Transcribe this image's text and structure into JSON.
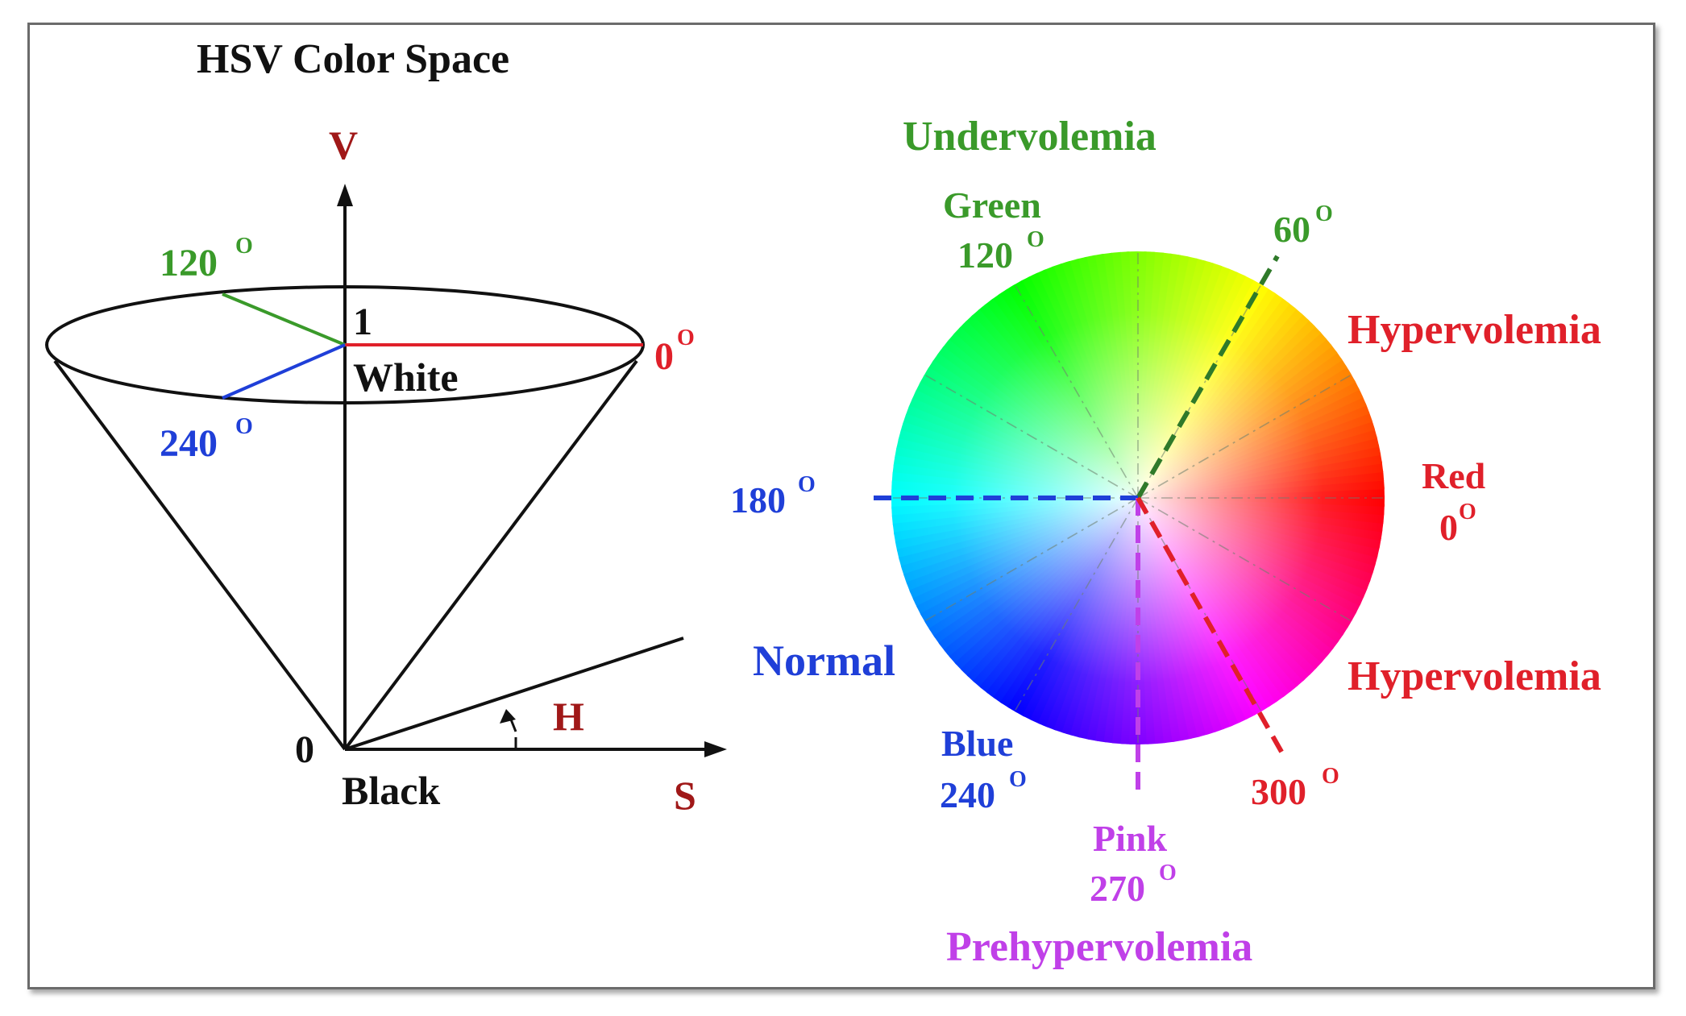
{
  "colors": {
    "red": "#e0202a",
    "darkred": "#a01818",
    "green": "#3a9a2a",
    "blue": "#1f3fd8",
    "purple": "#c040e8",
    "black": "#111111"
  },
  "cone": {
    "title": "HSV Color Space",
    "v_axis": "V",
    "s_axis": "S",
    "h_label": "H",
    "top_value": "1",
    "top_name": "White",
    "bottom_value": "0",
    "bottom_name": "Black",
    "angle_0": "0",
    "angle_120": "120",
    "angle_240": "240",
    "degree": "O"
  },
  "wheel": {
    "undervolemia": "Undervolemia",
    "green_name": "Green",
    "green_angle": "120",
    "angle_60": "60",
    "hypervolemia_top": "Hypervolemia",
    "red_name": "Red",
    "red_angle": "0",
    "hypervolemia_bottom": "Hypervolemia",
    "angle_300": "300",
    "angle_180": "180",
    "normal": "Normal",
    "blue_name": "Blue",
    "blue_angle": "240",
    "pink_name": "Pink",
    "pink_angle": "270",
    "prehypervolemia": "Prehypervolemia",
    "degree": "O"
  }
}
